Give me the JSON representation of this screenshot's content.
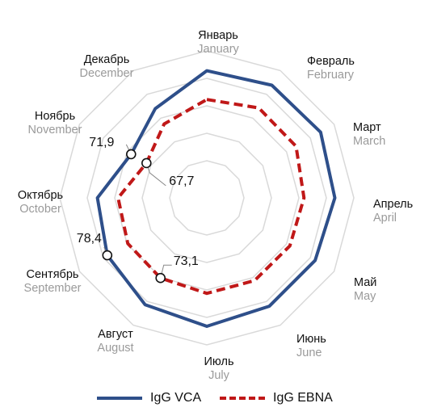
{
  "chart_data": {
    "type": "radar",
    "categories": [
      {
        "ru": "Январь",
        "en": "January"
      },
      {
        "ru": "Февраль",
        "en": "February"
      },
      {
        "ru": "Март",
        "en": "March"
      },
      {
        "ru": "Апрель",
        "en": "April"
      },
      {
        "ru": "Май",
        "en": "May"
      },
      {
        "ru": "Июнь",
        "en": "June"
      },
      {
        "ru": "Июль",
        "en": "July"
      },
      {
        "ru": "Август",
        "en": "August"
      },
      {
        "ru": "Сентябрь",
        "en": "September"
      },
      {
        "ru": "Октябрь",
        "en": "October"
      },
      {
        "ru": "Ноябрь",
        "en": "November"
      },
      {
        "ru": "Декабрь",
        "en": "December"
      }
    ],
    "rlim": [
      60,
      86
    ],
    "series": [
      {
        "name": "IgG VCA",
        "color": "#2e4f8a",
        "style": "solid",
        "values": [
          81.3,
          82.0,
          82.3,
          81.5,
          80.8,
          80.8,
          81.6,
          80.4,
          78.4,
          77.1,
          71.9,
          75.6
        ]
      },
      {
        "name": "IgG EBNA",
        "color": "#c01818",
        "style": "dashed",
        "values": [
          74.5,
          75.8,
          75.6,
          74.2,
          73.9,
          73.8,
          73.8,
          73.1,
          72.8,
          72.2,
          67.7,
          71.4
        ]
      }
    ],
    "annotations": [
      {
        "series": 0,
        "index": 8,
        "label": "78,4"
      },
      {
        "series": 0,
        "index": 10,
        "label": "71,9"
      },
      {
        "series": 1,
        "index": 10,
        "label": "67,7"
      },
      {
        "series": 1,
        "index": 7,
        "label": "73,1"
      }
    ],
    "grid": true,
    "legend_position": "bottom"
  },
  "legend": {
    "vca_label": "IgG VCA",
    "ebna_label": "IgG EBNA"
  }
}
